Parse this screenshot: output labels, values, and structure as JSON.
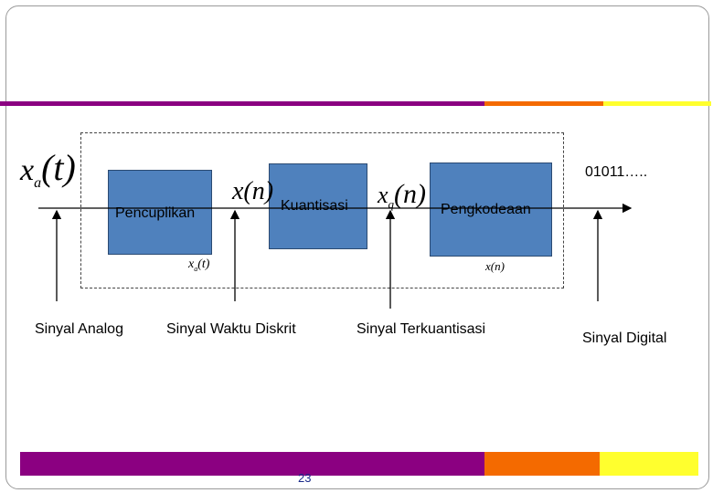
{
  "colors": {
    "stripe_purple": "#8b0081",
    "stripe_orange": "#f46a00",
    "stripe_yellow": "#ffff2e",
    "block_fill": "#4f81bd"
  },
  "blocks": {
    "sampler": "Pencuplikan",
    "quantizer": "Kuantisasi",
    "encoder": "Pengkodeaan"
  },
  "signals": {
    "analog": "Sinyal Analog",
    "discrete_time": "Sinyal Waktu Diskrit",
    "quantized": "Sinyal Terkuantisasi",
    "digital": "Sinyal Digital"
  },
  "math": {
    "xa_t_big": "x",
    "xa_t_big_sub": "a",
    "xa_t_big_arg": "(t)",
    "x_n_big": "x(n)",
    "xq_n_big": "x",
    "xq_n_big_sub": "q",
    "xq_n_big_arg": "(n)",
    "xa_t_small": "x",
    "xa_t_small_sub": "a",
    "xa_t_small_arg": "(t)",
    "x_n_small": "x(n)"
  },
  "output_bits": "01011…..",
  "page_number": "23"
}
